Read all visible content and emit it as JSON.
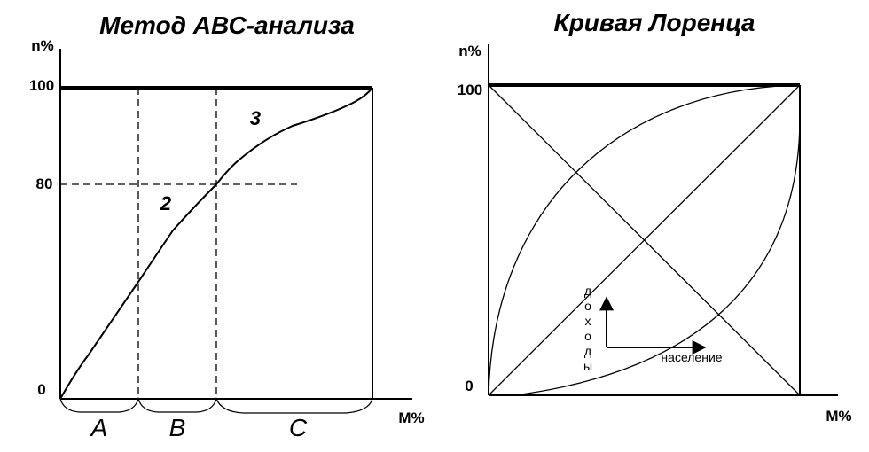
{
  "left": {
    "title": "Метод АВС-анализа",
    "y_axis_label": "n%",
    "x_axis_label": "M%",
    "ticks": [
      "100",
      "80",
      "0"
    ],
    "region_numbers": [
      "2",
      "3"
    ],
    "groups": [
      "A",
      "B",
      "C"
    ]
  },
  "right": {
    "title": "Кривая Лоренца",
    "y_axis_label": "n%",
    "x_axis_label": "M%",
    "ticks": [
      "100",
      "0"
    ],
    "inset": {
      "y_label": "доходы",
      "x_label": "население"
    }
  }
}
